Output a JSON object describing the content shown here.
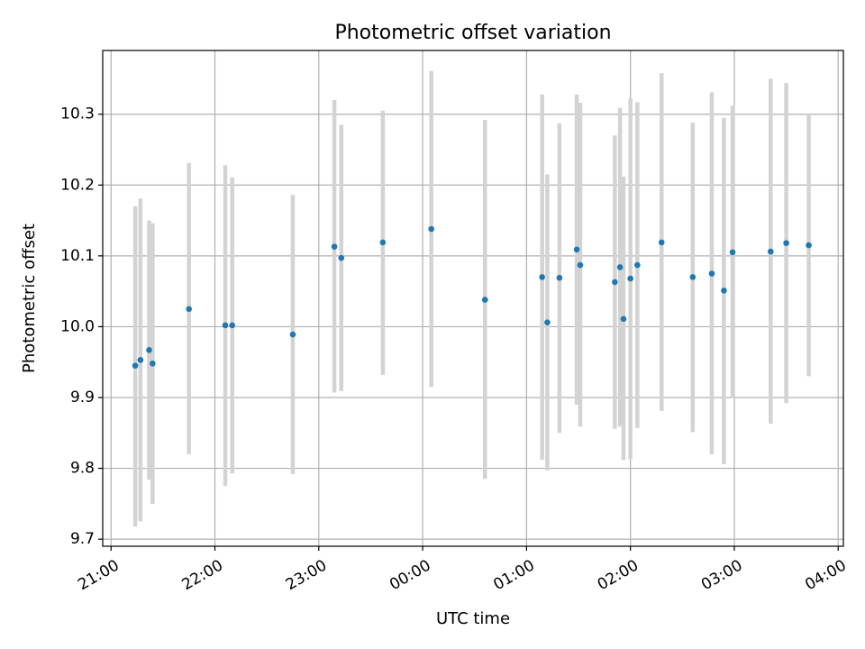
{
  "chart_data": {
    "type": "scatter",
    "title": "Photometric offset variation",
    "xlabel": "UTC time",
    "ylabel": "Photometric offset",
    "x_ticks": [
      "21:00",
      "22:00",
      "23:00",
      "00:00",
      "01:00",
      "02:00",
      "03:00",
      "04:00"
    ],
    "y_ticks": [
      "9.7",
      "9.8",
      "9.9",
      "10.0",
      "10.1",
      "10.2",
      "10.3"
    ],
    "x_range_hours": [
      -0.08,
      7.05
    ],
    "ylim": [
      9.69,
      10.39
    ],
    "grid": true,
    "marker_color": "#1f77b4",
    "errorbar_color": "#d3d3d3",
    "points": [
      {
        "time": "21:14",
        "y": 9.945,
        "lo": 9.718,
        "hi": 10.17
      },
      {
        "time": "21:17",
        "y": 9.953,
        "lo": 9.725,
        "hi": 10.181
      },
      {
        "time": "21:22",
        "y": 9.967,
        "lo": 9.784,
        "hi": 10.15
      },
      {
        "time": "21:24",
        "y": 9.948,
        "lo": 9.75,
        "hi": 10.146
      },
      {
        "time": "21:45",
        "y": 10.025,
        "lo": 9.82,
        "hi": 10.231
      },
      {
        "time": "22:06",
        "y": 10.002,
        "lo": 9.775,
        "hi": 10.228
      },
      {
        "time": "22:10",
        "y": 10.002,
        "lo": 9.793,
        "hi": 10.211
      },
      {
        "time": "22:45",
        "y": 9.989,
        "lo": 9.792,
        "hi": 10.186
      },
      {
        "time": "23:09",
        "y": 10.113,
        "lo": 9.907,
        "hi": 10.32
      },
      {
        "time": "23:13",
        "y": 10.097,
        "lo": 9.909,
        "hi": 10.285
      },
      {
        "time": "23:37",
        "y": 10.119,
        "lo": 9.932,
        "hi": 10.305
      },
      {
        "time": "00:05",
        "y": 10.138,
        "lo": 9.915,
        "hi": 10.361
      },
      {
        "time": "00:36",
        "y": 10.038,
        "lo": 9.785,
        "hi": 10.292
      },
      {
        "time": "01:09",
        "y": 10.07,
        "lo": 9.812,
        "hi": 10.328
      },
      {
        "time": "01:12",
        "y": 10.006,
        "lo": 9.797,
        "hi": 10.215
      },
      {
        "time": "01:19",
        "y": 10.069,
        "lo": 9.85,
        "hi": 10.287
      },
      {
        "time": "01:29",
        "y": 10.109,
        "lo": 9.89,
        "hi": 10.328
      },
      {
        "time": "01:31",
        "y": 10.087,
        "lo": 9.859,
        "hi": 10.316
      },
      {
        "time": "01:51",
        "y": 10.063,
        "lo": 9.856,
        "hi": 10.27
      },
      {
        "time": "01:54",
        "y": 10.084,
        "lo": 9.859,
        "hi": 10.309
      },
      {
        "time": "01:56",
        "y": 10.011,
        "lo": 9.812,
        "hi": 10.212
      },
      {
        "time": "02:00",
        "y": 10.068,
        "lo": 9.813,
        "hi": 10.323
      },
      {
        "time": "02:04",
        "y": 10.087,
        "lo": 9.857,
        "hi": 10.317
      },
      {
        "time": "02:18",
        "y": 10.119,
        "lo": 9.881,
        "hi": 10.358
      },
      {
        "time": "02:36",
        "y": 10.07,
        "lo": 9.851,
        "hi": 10.288
      },
      {
        "time": "02:47",
        "y": 10.075,
        "lo": 9.82,
        "hi": 10.331
      },
      {
        "time": "02:54",
        "y": 10.051,
        "lo": 9.806,
        "hi": 10.295
      },
      {
        "time": "02:59",
        "y": 10.105,
        "lo": 9.899,
        "hi": 10.312
      },
      {
        "time": "03:21",
        "y": 10.106,
        "lo": 9.863,
        "hi": 10.35
      },
      {
        "time": "03:30",
        "y": 10.118,
        "lo": 9.892,
        "hi": 10.344
      },
      {
        "time": "03:43",
        "y": 10.115,
        "lo": 9.93,
        "hi": 10.3
      }
    ]
  }
}
